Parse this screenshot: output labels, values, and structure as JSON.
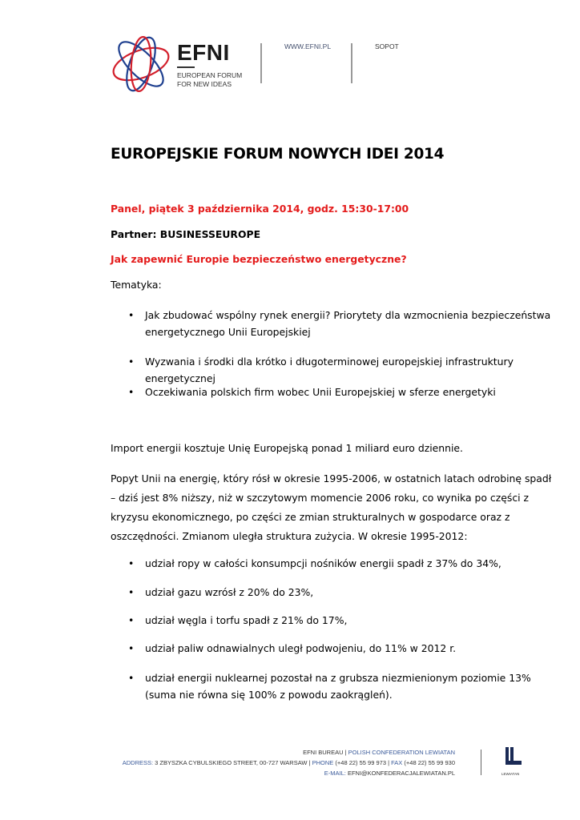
{
  "header": {
    "logo_word": "EFNI",
    "logo_sub1": "EUROPEAN FORUM",
    "logo_sub2": "FOR NEW IDEAS",
    "website": "WWW.EFNI.PL",
    "city": "SOPOT",
    "colors": {
      "red": "#d31f2b",
      "blue": "#1e3f8f"
    }
  },
  "title": "EUROPEJSKIE FORUM NOWYCH IDEI 2014",
  "panel": "Panel, piątek 3 października 2014, godz. 15:30-17:00",
  "partner": "Partner: BUSINESSEUROPE",
  "question": "Jak zapewnić Europie bezpieczeństwo energetyczne?",
  "topics_label": "Tematyka:",
  "topics": [
    "Jak zbudować wspólny rynek energii? Priorytety dla wzmocnienia bezpieczeństwa energetycznego Unii Europejskiej",
    "Wyzwania i środki dla krótko i długoterminowej europejskiej infrastruktury energetycznej",
    "Oczekiwania polskich firm wobec Unii Europejskiej w sferze energetyki"
  ],
  "para1": "Import energii kosztuje Unię Europejską ponad 1 miliard euro dziennie.",
  "para2": "Popyt Unii na energię, który rósł w okresie 1995-2006, w ostatnich latach odrobinę spadł – dziś jest 8% niższy, niż w szczytowym momencie 2006 roku, co wynika po części z kryzysu ekonomicznego, po części ze zmian strukturalnych w gospodarce oraz z oszczędności. Zmianom uległa struktura zużycia. W okresie 1995-2012:",
  "facts": [
    "udział ropy w całości konsumpcji nośników energii spadł z 37% do 34%,",
    "udział gazu wzrósł z 20% do 23%,",
    "udział węgla i torfu spadł z 21% do 17%,",
    "udział paliw odnawialnych uległ podwojeniu, do 11% w 2012 r.",
    "udział energii nuklearnej pozostał na z grubsza niezmienionym poziomie 13% (suma nie równa się 100% z powodu zaokrągleń)."
  ],
  "bullet": "•",
  "footer": {
    "line1a": "EFNI BUREAU |",
    "line1b": "POLISH CONFEDERATION LEWIATAN",
    "addr_label": "ADDRESS:",
    "addr": "3 ZBYSZKA CYBULSKIEGO STREET, 00-727 WARSAW |",
    "phone_label": "PHONE",
    "phone": "(+48 22) 55 99 973 |",
    "fax_label": "FAX",
    "fax": "(+48 22) 55 99 930",
    "email_label": "E-MAIL:",
    "email": "EFNI@KONFEDERACJALEWIATAN.PL",
    "lewiatan": "LEWIATAN"
  }
}
